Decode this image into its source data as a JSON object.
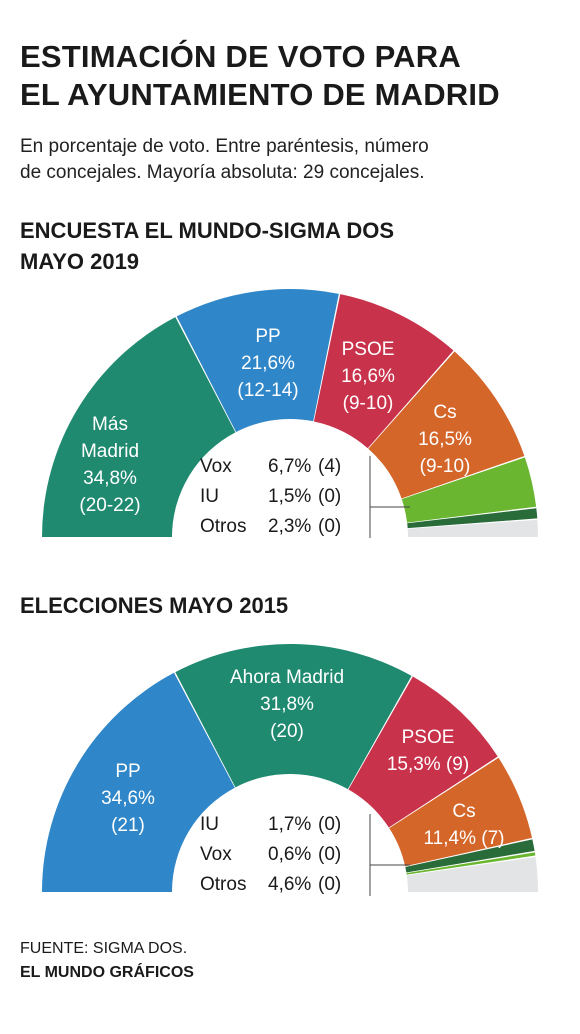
{
  "title_lines": [
    "ESTIMACIÓN DE VOTO PARA",
    "EL AYUNTAMIENTO DE MADRID"
  ],
  "subtitle_lines": [
    "En porcentaje de voto. Entre paréntesis, número",
    "de concejales. Mayoría absoluta: 29 concejales."
  ],
  "source": "FUENTE: SIGMA DOS.",
  "credit": "EL MUNDO GRÁFICOS",
  "chart_data": [
    {
      "type": "pie",
      "title_lines": [
        "ENCUESTA EL MUNDO-SIGMA DOS",
        "MAYO 2019"
      ],
      "slices": [
        {
          "name": "Más Madrid",
          "label_lines": [
            "Más",
            "Madrid",
            "34,8%",
            "(20-22)"
          ],
          "value": 34.8,
          "seats": "20-22",
          "color": "#1f8a70"
        },
        {
          "name": "PP",
          "label_lines": [
            "PP",
            "21,6%",
            "(12-14)"
          ],
          "value": 21.6,
          "seats": "12-14",
          "color": "#2f86c8"
        },
        {
          "name": "PSOE",
          "label_lines": [
            "PSOE",
            "16,6%",
            "(9-10)"
          ],
          "value": 16.6,
          "seats": "9-10",
          "color": "#c8324b"
        },
        {
          "name": "Cs",
          "label_lines": [
            "Cs",
            "16,5%",
            "(9-10)"
          ],
          "value": 16.5,
          "seats": "9-10",
          "color": "#d4662a"
        },
        {
          "name": "Vox",
          "label": "Vox",
          "pct": "6,7%",
          "seats_label": "(4)",
          "value": 6.7,
          "color": "#6ab630"
        },
        {
          "name": "IU",
          "label": "IU",
          "pct": "1,5%",
          "seats_label": "(0)",
          "value": 1.5,
          "color": "#2a6b3a"
        },
        {
          "name": "Otros",
          "label": "Otros",
          "pct": "2,3%",
          "seats_label": "(0)",
          "value": 2.3,
          "color": "#e2e4e6"
        }
      ]
    },
    {
      "type": "pie",
      "title_lines": [
        "ELECCIONES MAYO 2015"
      ],
      "slices": [
        {
          "name": "PP",
          "label_lines": [
            "PP",
            "34,6%",
            "(21)"
          ],
          "value": 34.6,
          "seats": "21",
          "color": "#2f86c8"
        },
        {
          "name": "Ahora Madrid",
          "label_lines": [
            "Ahora Madrid",
            "31,8%",
            "(20)"
          ],
          "value": 31.8,
          "seats": "20",
          "color": "#1f8a70"
        },
        {
          "name": "PSOE",
          "label_lines": [
            "PSOE",
            "15,3% (9)"
          ],
          "value": 15.3,
          "seats": "9",
          "color": "#c8324b"
        },
        {
          "name": "Cs",
          "label_lines": [
            "Cs",
            "11,4% (7)"
          ],
          "value": 11.4,
          "seats": "7",
          "color": "#d4662a"
        },
        {
          "name": "IU",
          "label": "IU",
          "pct": "1,7%",
          "seats_label": "(0)",
          "value": 1.7,
          "color": "#2a6b3a"
        },
        {
          "name": "Vox",
          "label": "Vox",
          "pct": "0,6%",
          "seats_label": "(0)",
          "value": 0.6,
          "color": "#6ab630"
        },
        {
          "name": "Otros",
          "label": "Otros",
          "pct": "4,6%",
          "seats_label": "(0)",
          "value": 4.6,
          "color": "#e2e4e6"
        }
      ]
    }
  ]
}
